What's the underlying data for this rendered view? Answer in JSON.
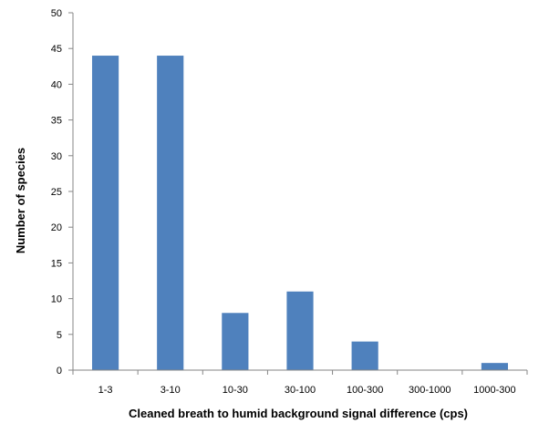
{
  "chart_data": {
    "type": "bar",
    "categories": [
      "1-3",
      "3-10",
      "10-30",
      "30-100",
      "100-300",
      "300-1000",
      "1000-300"
    ],
    "values": [
      44,
      44,
      8,
      11,
      4,
      0,
      1
    ],
    "xlabel": "Cleaned breath to humid background signal difference (cps)",
    "ylabel": "Number  of species",
    "ylim": [
      0,
      50
    ],
    "yticks": [
      0,
      5,
      10,
      15,
      20,
      25,
      30,
      35,
      40,
      45,
      50
    ],
    "grid": false,
    "legend": "none",
    "bar_color": "#4f81bd"
  }
}
